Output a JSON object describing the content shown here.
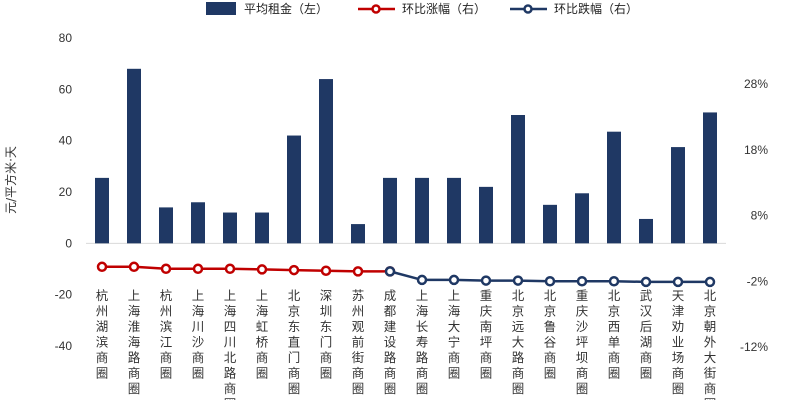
{
  "chart_data": {
    "type": "bar",
    "title": "",
    "categories": [
      "杭州湖滨商圈",
      "上海淮海路商圈",
      "杭州滨江商圈",
      "上海川沙商圈",
      "上海四川北路商圈",
      "上海虹桥商圈",
      "北京东直门商圈",
      "深圳东门商圈",
      "苏州观前街商圈",
      "成都建设路商圈",
      "上海长寿路商圈",
      "上海大宁商圈",
      "重庆南坪商圈",
      "北京远大路商圈",
      "北京鲁谷商圈",
      "重庆沙坪坝商圈",
      "北京西单商圈",
      "武汉后湖商圈",
      "天津劝业场商圈",
      "北京朝外大街商圈"
    ],
    "ylabel": "元/平方米·天",
    "y_left": {
      "ylim": [
        -40,
        80
      ],
      "ticks": [
        "-40",
        "-20",
        "0",
        "20",
        "40",
        "60",
        "80"
      ]
    },
    "y_right": {
      "ylim": [
        -12,
        28
      ],
      "ticks": [
        "-12%",
        "-2%",
        "8%",
        "18%",
        "28%"
      ]
    },
    "legend": {
      "position": "top",
      "items": [
        "平均租金（左）",
        "环比涨幅（右）",
        "环比跌幅（右）"
      ]
    },
    "series": [
      {
        "name": "平均租金（左）",
        "type": "bar",
        "axis": "left",
        "color": "#1f3864",
        "values": [
          25.5,
          68,
          14,
          16,
          12,
          12,
          42,
          64,
          7.5,
          25.5,
          25.5,
          25.5,
          22,
          50,
          15,
          19.5,
          43.5,
          9.5,
          37.5,
          51
        ]
      },
      {
        "name": "环比涨幅（右）",
        "type": "line",
        "axis": "right",
        "color": "#c00000",
        "values": [
          0.2,
          0.2,
          -0.1,
          -0.1,
          -0.1,
          -0.2,
          -0.3,
          -0.4,
          -0.5,
          -0.5,
          null,
          null,
          null,
          null,
          null,
          null,
          null,
          null,
          null,
          null
        ]
      },
      {
        "name": "环比跌幅（右）",
        "type": "line",
        "axis": "right",
        "color": "#1f3864",
        "values": [
          null,
          null,
          null,
          null,
          null,
          null,
          null,
          null,
          null,
          -0.5,
          -1.8,
          -1.8,
          -1.9,
          -1.9,
          -2.0,
          -2.0,
          -2.0,
          -2.1,
          -2.1,
          -2.1
        ]
      }
    ],
    "grid": false
  }
}
